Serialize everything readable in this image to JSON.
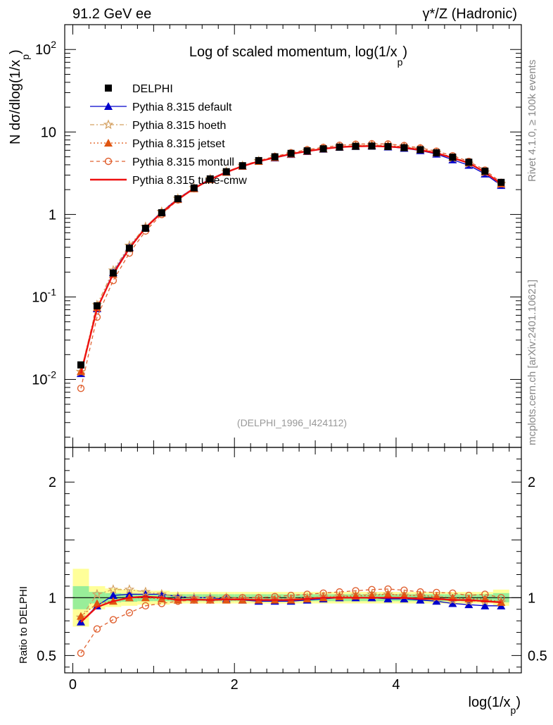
{
  "header": {
    "left": "91.2 GeV ee",
    "right": "γ*/Z (Hadronic)"
  },
  "side_labels": {
    "rivet": "Rivet 4.1.0, ≥ 100k events",
    "mcplots": "mcplots.cern.ch [arXiv:2401.10621]"
  },
  "chart_data": [
    {
      "type": "line",
      "panel": "main",
      "title": "Log of scaled momentum, log(1/x",
      "title_sub": "p",
      "title_end": ")",
      "xlabel": "log(1/x",
      "xlabel_sub": "p",
      "xlabel_end": ")",
      "ylabel": "N   dσ/dlog(1/x",
      "ylabel_sub": "p",
      "ylabel_end": ")",
      "yscale": "log",
      "xlim": [
        -0.1,
        5.55
      ],
      "ylim": [
        0.0015,
        200
      ],
      "x_ticks": [
        "0",
        "2",
        "4"
      ],
      "y_ticks": [
        {
          "base": "10",
          "exp": "-2"
        },
        {
          "base": "10",
          "exp": "-1"
        },
        {
          "base": "1",
          "exp": ""
        },
        {
          "base": "10",
          "exp": ""
        },
        {
          "base": "10",
          "exp": "2"
        }
      ],
      "watermark": "(DELPHI_1996_I424112)",
      "x": [
        0.1,
        0.3,
        0.5,
        0.7,
        0.9,
        1.1,
        1.3,
        1.5,
        1.7,
        1.9,
        2.1,
        2.3,
        2.5,
        2.7,
        2.9,
        3.1,
        3.3,
        3.5,
        3.7,
        3.9,
        4.1,
        4.3,
        4.5,
        4.7,
        4.9,
        5.1,
        5.3
      ],
      "series": [
        {
          "name": "DELPHI",
          "color": "#000000",
          "marker": "square",
          "values": [
            0.015,
            0.078,
            0.195,
            0.39,
            0.68,
            1.05,
            1.55,
            2.1,
            2.7,
            3.3,
            3.9,
            4.5,
            5.0,
            5.5,
            5.9,
            6.25,
            6.55,
            6.7,
            6.75,
            6.65,
            6.45,
            6.1,
            5.6,
            4.95,
            4.3,
            3.35,
            2.45
          ]
        },
        {
          "name": "Pythia 8.315 default",
          "color": "#0000cc",
          "marker": "triangle",
          "dash": "",
          "values": [
            0.0118,
            0.072,
            0.198,
            0.4,
            0.7,
            1.08,
            1.56,
            2.1,
            2.7,
            3.3,
            3.85,
            4.4,
            4.85,
            5.35,
            5.8,
            6.2,
            6.55,
            6.7,
            6.75,
            6.6,
            6.35,
            5.95,
            5.4,
            4.6,
            3.95,
            3.1,
            2.25
          ]
        },
        {
          "name": "Pythia 8.315 hoeth",
          "color": "#d4a060",
          "marker": "star",
          "dash": "6,3,2,3",
          "values": [
            0.0124,
            0.08,
            0.21,
            0.42,
            0.71,
            1.08,
            1.56,
            2.1,
            2.7,
            3.3,
            3.9,
            4.45,
            4.95,
            5.45,
            5.9,
            6.3,
            6.65,
            6.85,
            6.95,
            6.85,
            6.6,
            6.2,
            5.6,
            4.85,
            4.15,
            3.25,
            2.35
          ]
        },
        {
          "name": "Pythia 8.315 jetset",
          "color": "#e05510",
          "marker": "triangle",
          "dash": "2,3",
          "values": [
            0.0125,
            0.074,
            0.188,
            0.39,
            0.68,
            1.04,
            1.52,
            2.05,
            2.65,
            3.25,
            3.85,
            4.4,
            4.9,
            5.4,
            5.85,
            6.25,
            6.6,
            6.8,
            6.9,
            6.85,
            6.6,
            6.2,
            5.65,
            4.95,
            4.25,
            3.3,
            2.35
          ]
        },
        {
          "name": "Pythia 8.315 montull",
          "color": "#e06030",
          "marker": "circle",
          "dash": "5,4",
          "values": [
            0.0078,
            0.057,
            0.158,
            0.34,
            0.63,
            1.0,
            1.5,
            2.05,
            2.65,
            3.3,
            3.9,
            4.5,
            5.05,
            5.6,
            6.1,
            6.5,
            6.9,
            7.1,
            7.2,
            7.15,
            6.85,
            6.4,
            5.85,
            5.15,
            4.4,
            3.45,
            2.45
          ]
        },
        {
          "name": "Pythia 8.315 tune-cmw",
          "color": "#ee1111",
          "marker": "none",
          "dash": "",
          "values": [
            0.0118,
            0.072,
            0.19,
            0.39,
            0.69,
            1.05,
            1.52,
            2.07,
            2.65,
            3.25,
            3.85,
            4.4,
            4.9,
            5.4,
            5.85,
            6.25,
            6.55,
            6.7,
            6.75,
            6.65,
            6.45,
            6.05,
            5.55,
            4.85,
            4.2,
            3.25,
            2.35
          ]
        }
      ],
      "legend_placement": "top-left"
    },
    {
      "type": "line",
      "panel": "ratio",
      "ylabel": "Ratio to DELPHI",
      "ylim": [
        0.35,
        2.3
      ],
      "y_ticks": [
        "0.5",
        "1",
        "2"
      ],
      "x": [
        0.1,
        0.3,
        0.5,
        0.7,
        0.9,
        1.1,
        1.3,
        1.5,
        1.7,
        1.9,
        2.1,
        2.3,
        2.5,
        2.7,
        2.9,
        3.1,
        3.3,
        3.5,
        3.7,
        3.9,
        4.1,
        4.3,
        4.5,
        4.7,
        4.9,
        5.1,
        5.3
      ],
      "bands": {
        "bin_edges": [
          0.0,
          0.2,
          0.4,
          0.6,
          0.8,
          1.0,
          1.2,
          1.4,
          1.6,
          1.8,
          2.0,
          2.2,
          2.4,
          2.6,
          2.8,
          3.0,
          3.2,
          3.4,
          3.6,
          3.8,
          4.0,
          4.2,
          4.4,
          4.6,
          4.8,
          5.0,
          5.2,
          5.4
        ],
        "yellow": [
          0.25,
          0.1,
          0.08,
          0.07,
          0.06,
          0.06,
          0.05,
          0.05,
          0.05,
          0.05,
          0.05,
          0.05,
          0.05,
          0.05,
          0.05,
          0.05,
          0.05,
          0.05,
          0.05,
          0.05,
          0.05,
          0.05,
          0.05,
          0.05,
          0.05,
          0.05,
          0.07
        ],
        "green": [
          0.1,
          0.05,
          0.04,
          0.035,
          0.03,
          0.03,
          0.03,
          0.03,
          0.03,
          0.03,
          0.03,
          0.03,
          0.03,
          0.03,
          0.03,
          0.03,
          0.03,
          0.03,
          0.03,
          0.03,
          0.03,
          0.03,
          0.03,
          0.03,
          0.03,
          0.03,
          0.04
        ],
        "yellow_color": "#ffff99",
        "green_color": "#99ee99"
      },
      "series": [
        {
          "name": "Pythia 8.315 default",
          "values": [
            0.79,
            0.93,
            1.02,
            1.03,
            1.03,
            1.03,
            1.01,
            1.0,
            1.0,
            0.99,
            0.98,
            0.97,
            0.97,
            0.97,
            0.98,
            0.99,
            1.0,
            1.0,
            1.0,
            0.99,
            0.99,
            0.98,
            0.97,
            0.95,
            0.94,
            0.93,
            0.93
          ]
        },
        {
          "name": "Pythia 8.315 hoeth",
          "values": [
            0.83,
            1.03,
            1.07,
            1.07,
            1.05,
            1.03,
            1.01,
            1.0,
            1.0,
            1.0,
            0.99,
            0.99,
            0.99,
            0.99,
            1.0,
            1.01,
            1.015,
            1.02,
            1.03,
            1.03,
            1.02,
            1.02,
            1.0,
            0.98,
            0.97,
            0.97,
            0.96
          ]
        },
        {
          "name": "Pythia 8.315 jetset",
          "values": [
            0.84,
            0.95,
            0.97,
            1.0,
            1.0,
            0.99,
            0.98,
            0.98,
            0.98,
            0.98,
            0.98,
            0.98,
            0.98,
            0.98,
            0.99,
            1.0,
            1.01,
            1.015,
            1.02,
            1.03,
            1.02,
            1.02,
            1.01,
            1.0,
            0.99,
            0.99,
            0.96
          ]
        },
        {
          "name": "Pythia 8.315 montull",
          "values": [
            0.52,
            0.73,
            0.81,
            0.87,
            0.93,
            0.95,
            0.97,
            0.98,
            0.98,
            1.0,
            1.0,
            1.0,
            1.01,
            1.02,
            1.03,
            1.04,
            1.05,
            1.06,
            1.07,
            1.075,
            1.065,
            1.05,
            1.045,
            1.04,
            1.02,
            1.03,
            1.0
          ]
        },
        {
          "name": "Pythia 8.315 tune-cmw",
          "values": [
            0.79,
            0.92,
            0.97,
            1.0,
            1.01,
            1.0,
            0.98,
            0.985,
            0.98,
            0.985,
            0.985,
            0.98,
            0.98,
            0.98,
            0.99,
            1.0,
            1.0,
            1.0,
            1.0,
            1.0,
            1.0,
            0.99,
            0.99,
            0.98,
            0.98,
            0.97,
            0.96
          ]
        }
      ]
    }
  ]
}
